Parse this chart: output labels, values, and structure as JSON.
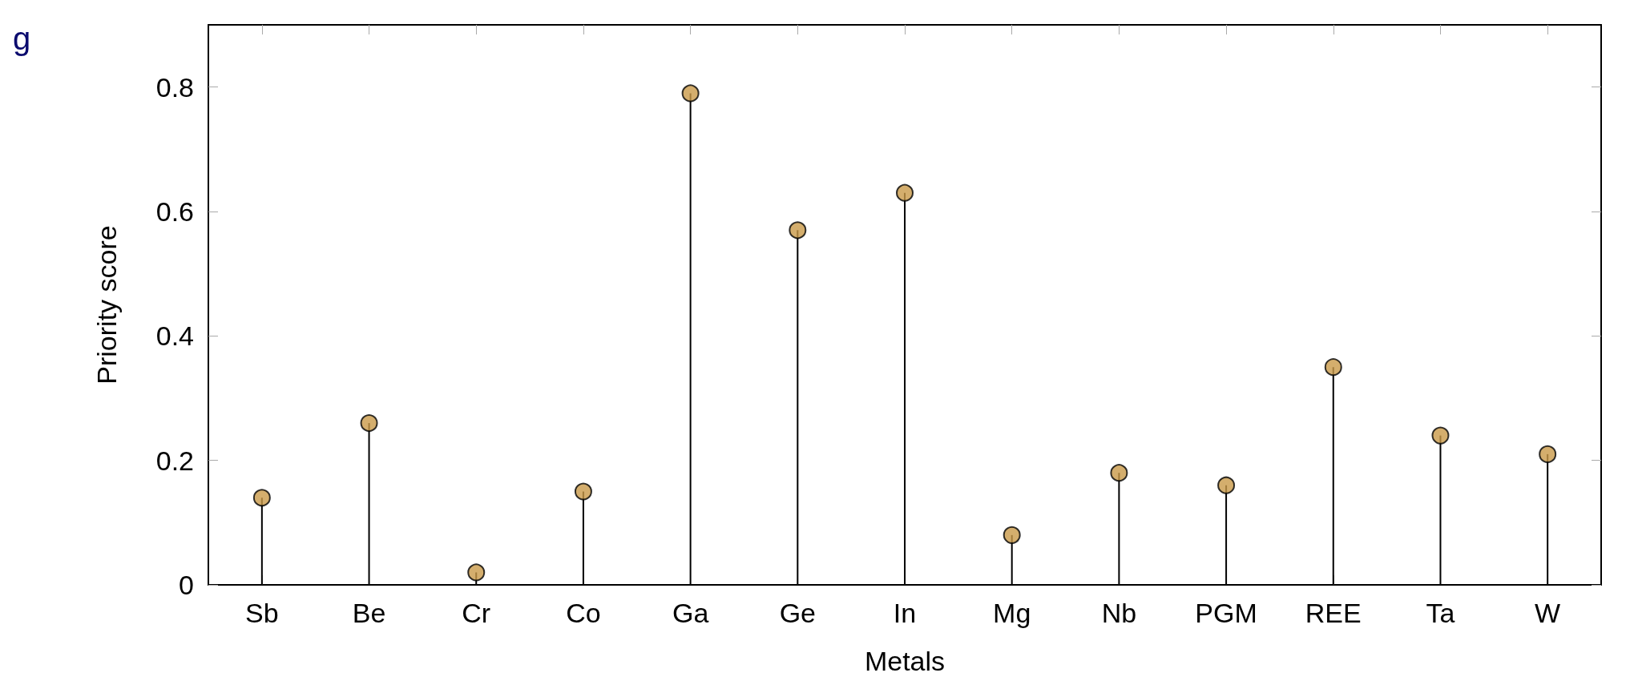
{
  "chart_data": {
    "type": "lollipop",
    "xlabel": "Metals",
    "ylabel": "Priority score",
    "annotations": [
      "g"
    ],
    "categories": [
      "Sb",
      "Be",
      "Cr",
      "Co",
      "Ga",
      "Ge",
      "In",
      "Mg",
      "Nb",
      "PGM",
      "REE",
      "Ta",
      "W"
    ],
    "values": [
      0.14,
      0.26,
      0.02,
      0.15,
      0.79,
      0.57,
      0.63,
      0.08,
      0.18,
      0.16,
      0.35,
      0.24,
      0.21
    ],
    "color": "#c99a48",
    "marker": "circle",
    "ylim": [
      0,
      0.9
    ],
    "yticks": [
      0,
      0.2,
      0.4,
      0.6,
      0.8
    ],
    "grid": false
  }
}
